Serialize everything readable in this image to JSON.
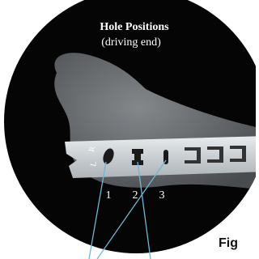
{
  "header": {
    "title": "Hole Positions",
    "subtitle": "(driving end)"
  },
  "nail_marks": [
    "R",
    "L"
  ],
  "holes": [
    {
      "label": "1"
    },
    {
      "label": "2"
    },
    {
      "label": "3"
    }
  ],
  "caption": "Fig"
}
